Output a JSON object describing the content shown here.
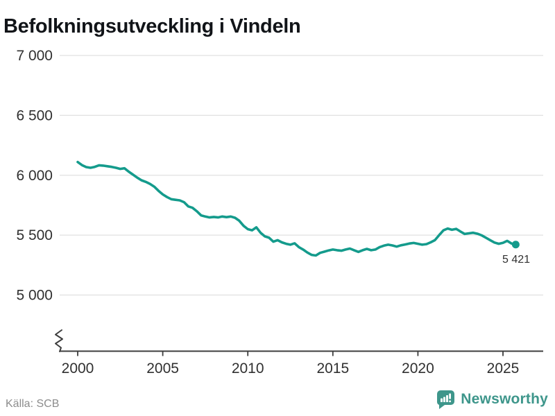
{
  "title": "Befolkningsutveckling i Vindeln",
  "footer": {
    "source_label": "Källa: SCB"
  },
  "brand": {
    "name": "Newsworthy",
    "icon": "bar-chart-speech-bubble-icon",
    "color": "#3e968b"
  },
  "colors": {
    "line": "#149b8c",
    "grid": "#e0e0e0",
    "axis": "#3d3d3d",
    "tick_text": "#303030",
    "title_text": "#111418",
    "muted_text": "#8c8c8c"
  },
  "chart_data": {
    "type": "line",
    "title": "Befolkningsutveckling i Vindeln",
    "xlabel": "",
    "ylabel": "",
    "grid": "horizontal",
    "axis_break_at_origin": true,
    "ylim": [
      5000,
      7000
    ],
    "xlim": [
      1998.9,
      2027.4
    ],
    "yticks": {
      "values": [
        7000,
        6500,
        6000,
        5500,
        5000
      ],
      "labels": [
        "7 000",
        "6 500",
        "6 000",
        "5 500",
        "5 000"
      ]
    },
    "xticks": {
      "values": [
        2000,
        2005,
        2010,
        2015,
        2020,
        2025
      ],
      "labels": [
        "2000",
        "2005",
        "2010",
        "2015",
        "2020",
        "2025"
      ]
    },
    "last_point": {
      "x": 2025.75,
      "value": 5421,
      "label": "5 421"
    },
    "series": [
      {
        "name": "Befolkning i Vindeln",
        "color": "#149b8c",
        "points": [
          [
            2000.0,
            6110
          ],
          [
            2000.25,
            6085
          ],
          [
            2000.5,
            6068
          ],
          [
            2000.75,
            6062
          ],
          [
            2001.0,
            6070
          ],
          [
            2001.25,
            6083
          ],
          [
            2001.5,
            6080
          ],
          [
            2001.75,
            6075
          ],
          [
            2002.0,
            6070
          ],
          [
            2002.25,
            6062
          ],
          [
            2002.5,
            6053
          ],
          [
            2002.75,
            6058
          ],
          [
            2003.0,
            6030
          ],
          [
            2003.25,
            6005
          ],
          [
            2003.5,
            5980
          ],
          [
            2003.75,
            5958
          ],
          [
            2004.0,
            5945
          ],
          [
            2004.25,
            5928
          ],
          [
            2004.5,
            5905
          ],
          [
            2004.75,
            5870
          ],
          [
            2005.0,
            5840
          ],
          [
            2005.25,
            5818
          ],
          [
            2005.5,
            5800
          ],
          [
            2005.75,
            5795
          ],
          [
            2006.0,
            5790
          ],
          [
            2006.25,
            5775
          ],
          [
            2006.5,
            5740
          ],
          [
            2006.75,
            5728
          ],
          [
            2007.0,
            5700
          ],
          [
            2007.25,
            5665
          ],
          [
            2007.5,
            5655
          ],
          [
            2007.75,
            5648
          ],
          [
            2008.0,
            5652
          ],
          [
            2008.25,
            5648
          ],
          [
            2008.5,
            5655
          ],
          [
            2008.75,
            5650
          ],
          [
            2009.0,
            5655
          ],
          [
            2009.25,
            5645
          ],
          [
            2009.5,
            5620
          ],
          [
            2009.75,
            5578
          ],
          [
            2010.0,
            5550
          ],
          [
            2010.25,
            5540
          ],
          [
            2010.5,
            5565
          ],
          [
            2010.75,
            5520
          ],
          [
            2011.0,
            5490
          ],
          [
            2011.25,
            5478
          ],
          [
            2011.5,
            5445
          ],
          [
            2011.75,
            5458
          ],
          [
            2012.0,
            5440
          ],
          [
            2012.25,
            5428
          ],
          [
            2012.5,
            5420
          ],
          [
            2012.75,
            5432
          ],
          [
            2013.0,
            5400
          ],
          [
            2013.25,
            5380
          ],
          [
            2013.5,
            5355
          ],
          [
            2013.75,
            5335
          ],
          [
            2014.0,
            5330
          ],
          [
            2014.25,
            5352
          ],
          [
            2014.5,
            5362
          ],
          [
            2014.75,
            5372
          ],
          [
            2015.0,
            5380
          ],
          [
            2015.25,
            5374
          ],
          [
            2015.5,
            5370
          ],
          [
            2015.75,
            5380
          ],
          [
            2016.0,
            5388
          ],
          [
            2016.25,
            5374
          ],
          [
            2016.5,
            5360
          ],
          [
            2016.75,
            5374
          ],
          [
            2017.0,
            5385
          ],
          [
            2017.25,
            5374
          ],
          [
            2017.5,
            5380
          ],
          [
            2017.75,
            5400
          ],
          [
            2018.0,
            5412
          ],
          [
            2018.25,
            5420
          ],
          [
            2018.5,
            5414
          ],
          [
            2018.75,
            5404
          ],
          [
            2019.0,
            5415
          ],
          [
            2019.25,
            5422
          ],
          [
            2019.5,
            5430
          ],
          [
            2019.75,
            5435
          ],
          [
            2020.0,
            5428
          ],
          [
            2020.25,
            5420
          ],
          [
            2020.5,
            5425
          ],
          [
            2020.75,
            5440
          ],
          [
            2021.0,
            5458
          ],
          [
            2021.25,
            5500
          ],
          [
            2021.5,
            5540
          ],
          [
            2021.75,
            5555
          ],
          [
            2022.0,
            5545
          ],
          [
            2022.25,
            5552
          ],
          [
            2022.5,
            5530
          ],
          [
            2022.75,
            5510
          ],
          [
            2023.0,
            5515
          ],
          [
            2023.25,
            5520
          ],
          [
            2023.5,
            5512
          ],
          [
            2023.75,
            5498
          ],
          [
            2024.0,
            5478
          ],
          [
            2024.25,
            5458
          ],
          [
            2024.5,
            5438
          ],
          [
            2024.75,
            5428
          ],
          [
            2025.0,
            5436
          ],
          [
            2025.25,
            5452
          ],
          [
            2025.5,
            5430
          ],
          [
            2025.75,
            5421
          ]
        ]
      }
    ]
  }
}
